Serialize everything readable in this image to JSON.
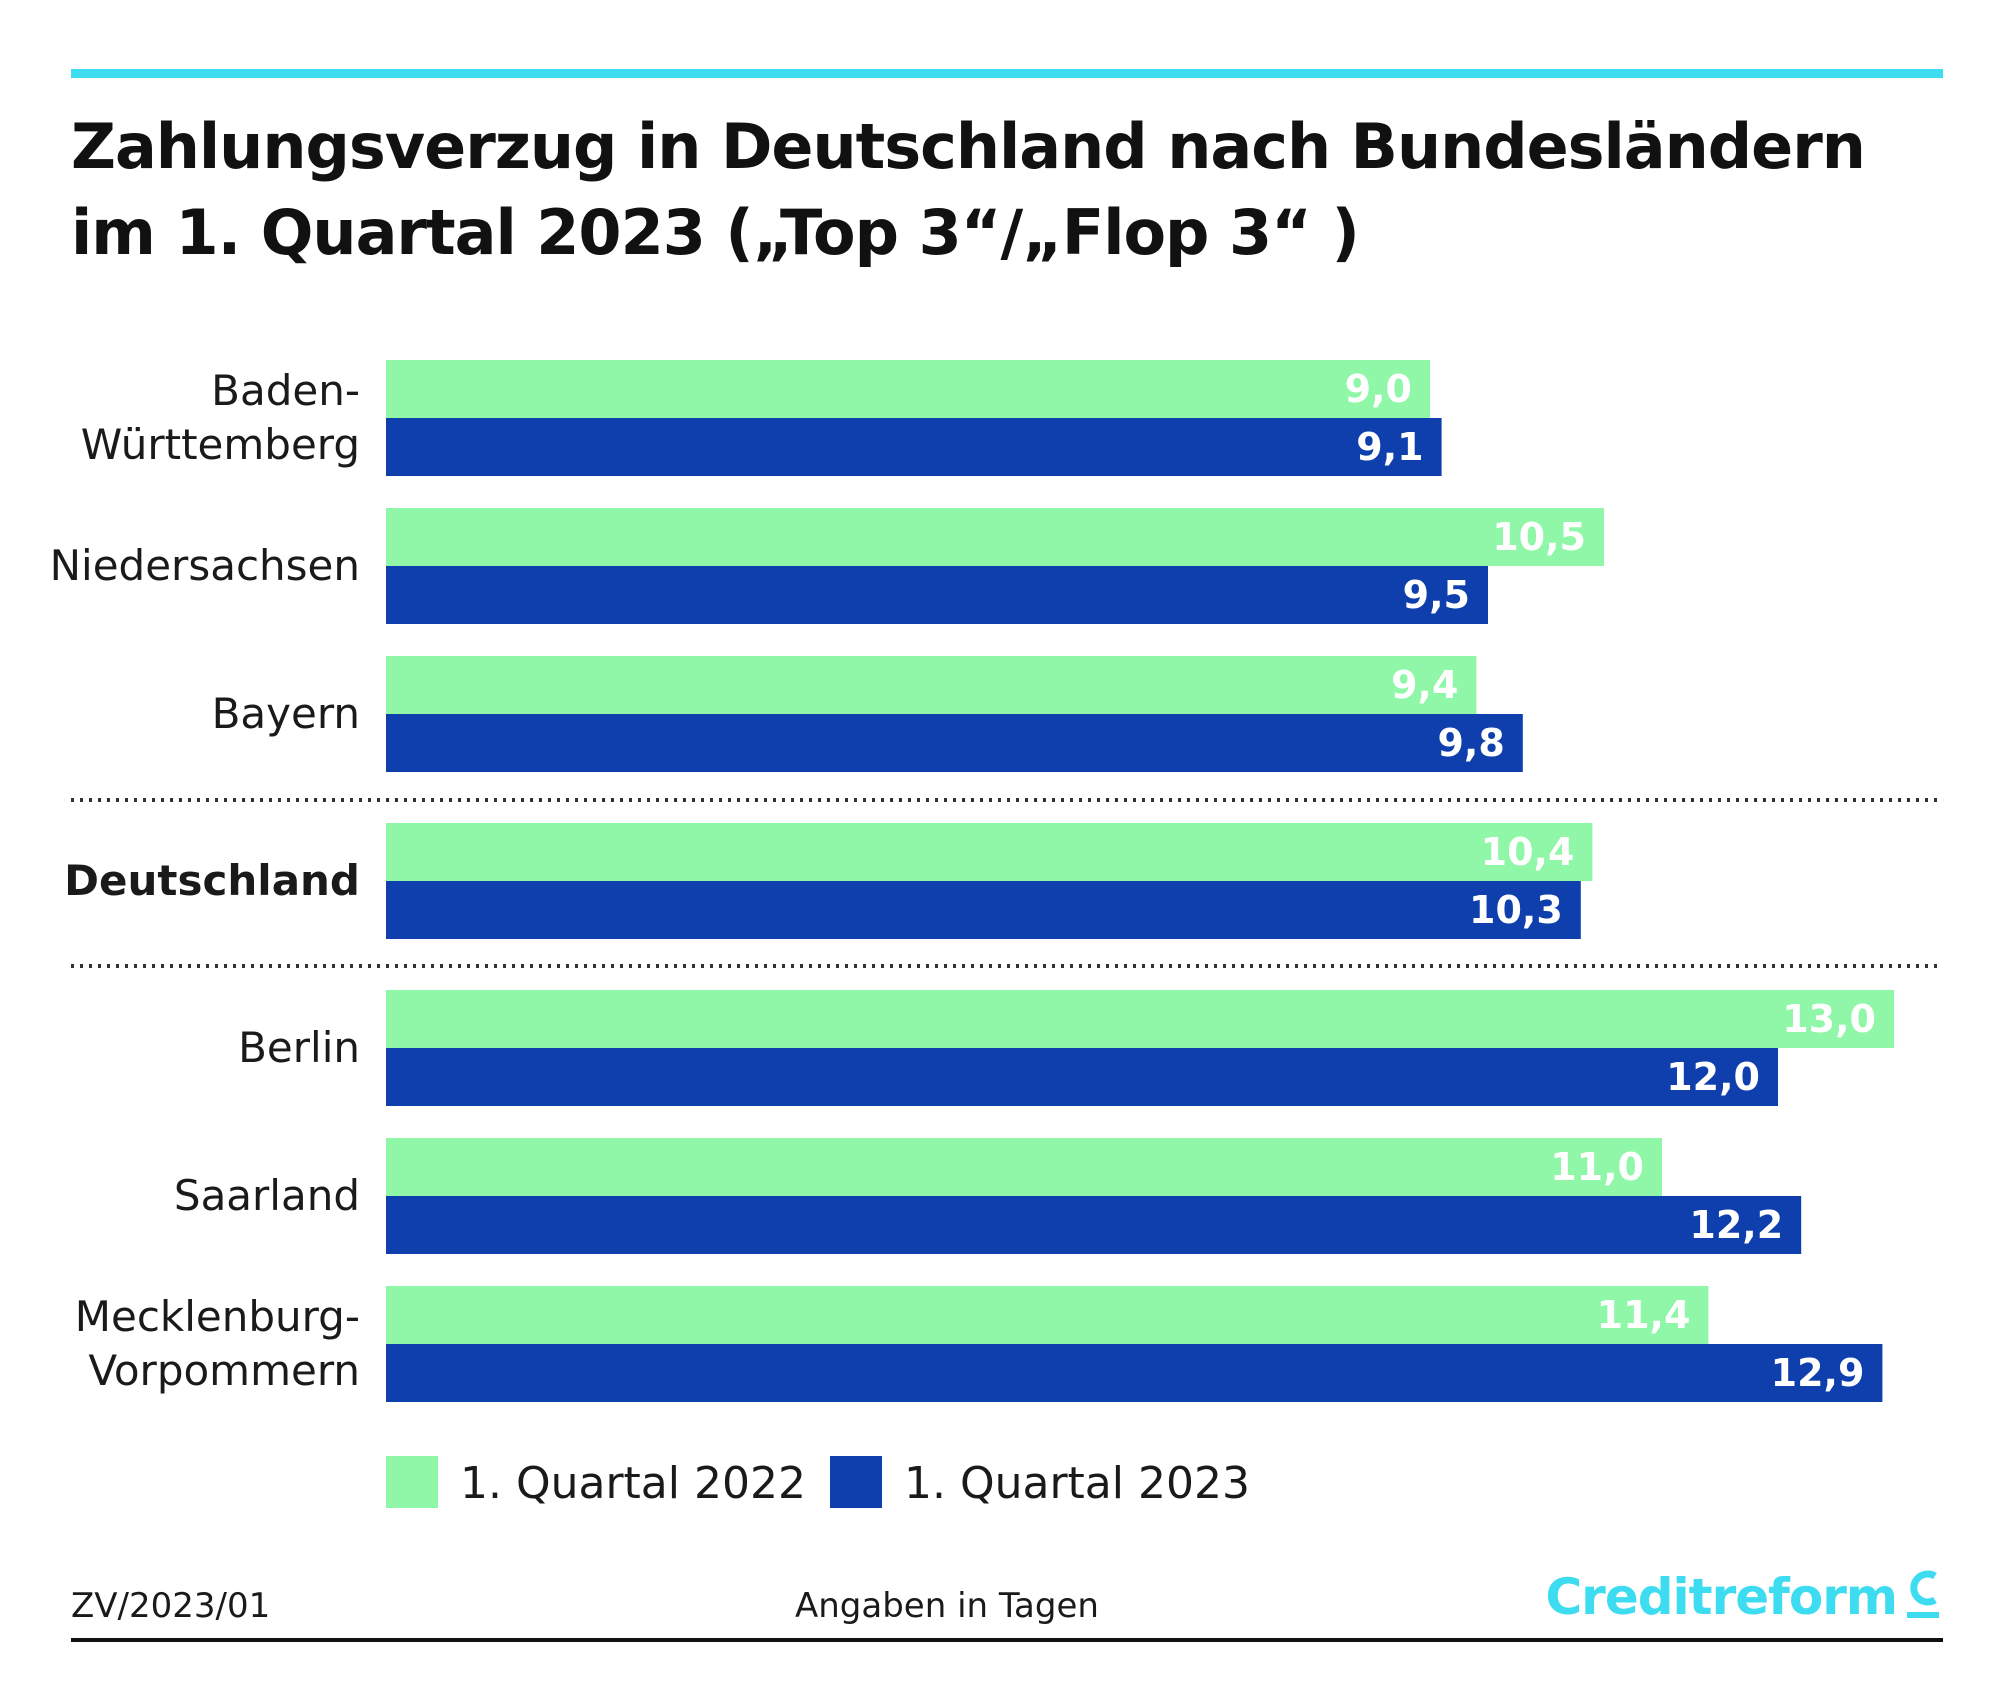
{
  "title": {
    "line1": "Zahlungsverzug in Deutschland nach Bundesländern",
    "line2": "im 1. Quartal 2023 („Top 3“/„Flop 3“ )"
  },
  "colors": {
    "q2022": "#8ff7a7",
    "q2023": "#0f3fad",
    "accent": "#3ddcf0",
    "dotted_separator": "#333333"
  },
  "chart_data": {
    "type": "bar",
    "orientation": "horizontal",
    "categories": [
      "Baden-\nWürttemberg",
      "Niedersachsen",
      "Bayern",
      "Deutschland",
      "Berlin",
      "Saarland",
      "Mecklenburg-\nVorpommern"
    ],
    "bold_categories": [
      "Deutschland"
    ],
    "series": [
      {
        "name": "1. Quartal 2022",
        "values": [
          9.0,
          10.5,
          9.4,
          10.4,
          13.0,
          11.0,
          11.4
        ]
      },
      {
        "name": "1. Quartal 2023",
        "values": [
          9.1,
          9.5,
          9.8,
          10.3,
          12.0,
          12.2,
          12.9
        ]
      }
    ],
    "value_labels": {
      "1. Quartal 2022": [
        "9,0",
        "10,5",
        "9,4",
        "10,4",
        "13,0",
        "11,0",
        "11,4"
      ],
      "1. Quartal 2023": [
        "9,1",
        "9,5",
        "9,8",
        "10,3",
        "12,0",
        "12,2",
        "12,9"
      ]
    },
    "xlim": [
      0,
      13.0
    ],
    "grid": false,
    "separators_after": [
      "Bayern",
      "Deutschland"
    ],
    "legend": "bottom-left"
  },
  "footer": {
    "code": "ZV/2023/01",
    "unit_note": "Angaben in Tagen",
    "brand": "Creditreform"
  }
}
